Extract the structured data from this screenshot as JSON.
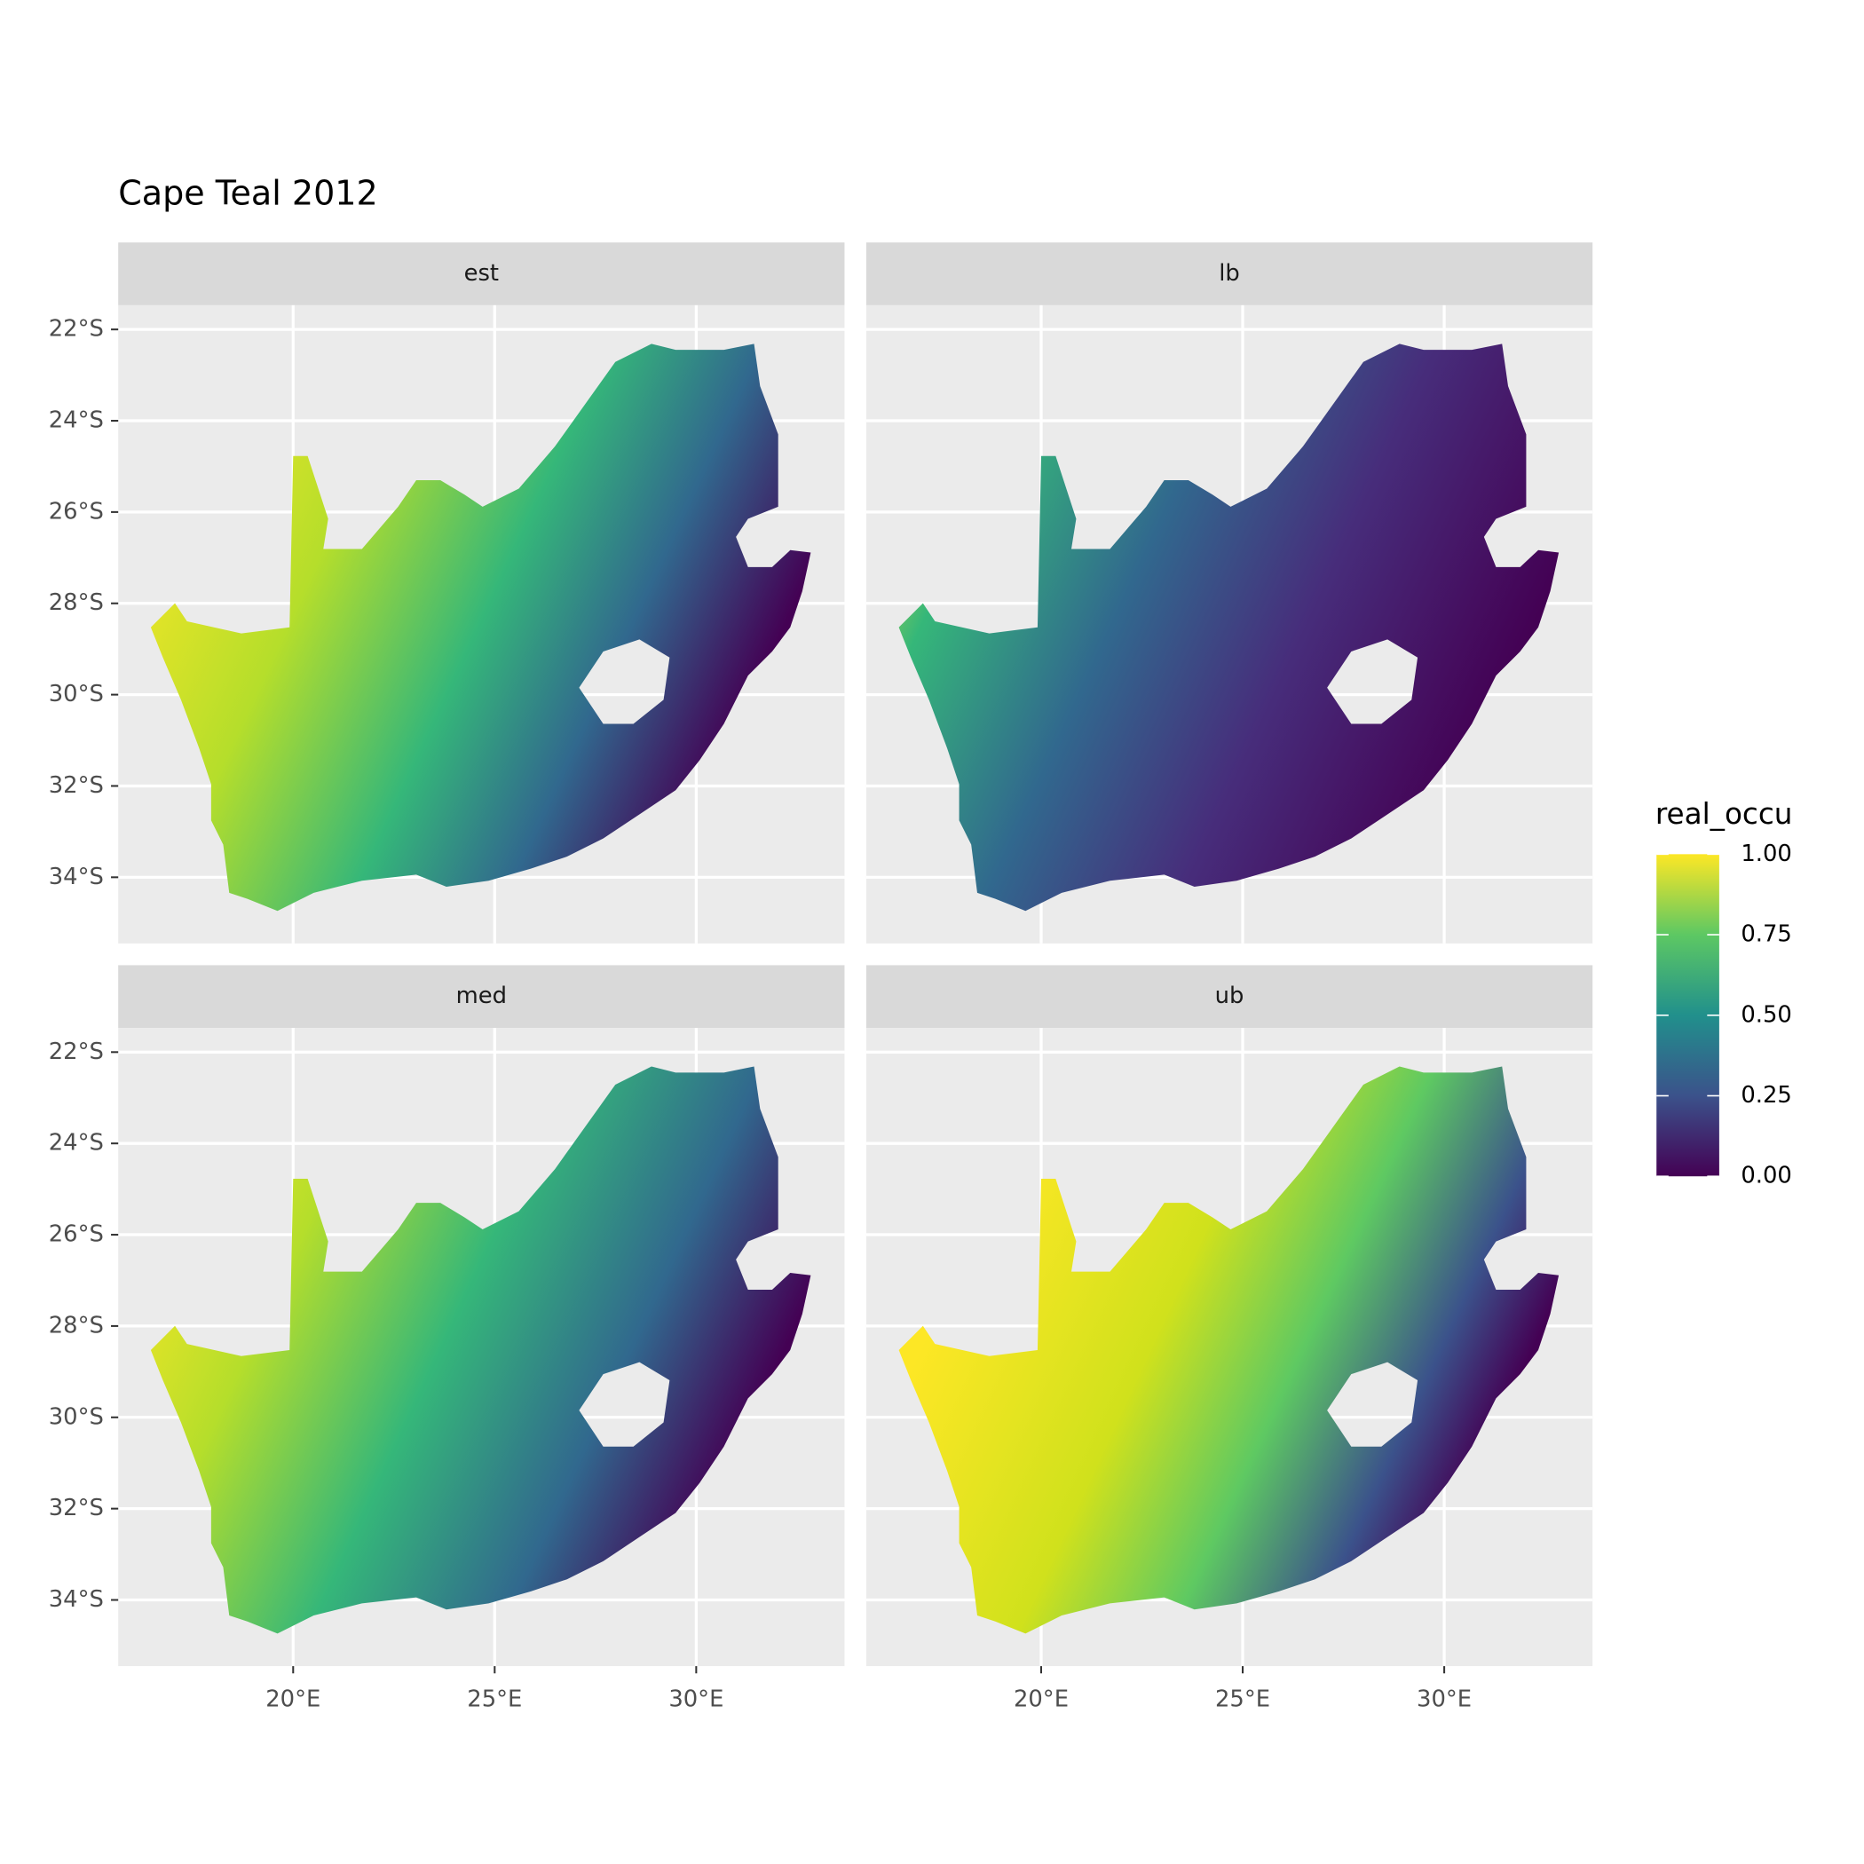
{
  "chart_data": {
    "type": "raster-map",
    "title": "Cape Teal 2012",
    "facets": [
      "est",
      "lb",
      "med",
      "ub"
    ],
    "xlim": [
      15.66,
      33.68
    ],
    "xticks": [
      {
        "value": 20,
        "label": "20°E"
      },
      {
        "value": 25,
        "label": "25°E"
      },
      {
        "value": 30,
        "label": "30°E"
      }
    ],
    "ylim": [
      -35.45,
      -21.47
    ],
    "yticks": [
      {
        "value": -22,
        "label": "22°S"
      },
      {
        "value": -24,
        "label": "24°S"
      },
      {
        "value": -26,
        "label": "26°S"
      },
      {
        "value": -28,
        "label": "28°S"
      },
      {
        "value": -30,
        "label": "30°S"
      },
      {
        "value": -32,
        "label": "32°S"
      },
      {
        "value": -34,
        "label": "34°S"
      }
    ],
    "grid": true,
    "legend": {
      "title": "real_occu",
      "lim": [
        0,
        1
      ],
      "ticks": [
        {
          "value": 0,
          "label": "0.00"
        },
        {
          "value": 0.25,
          "label": "0.25"
        },
        {
          "value": 0.5,
          "label": "0.50"
        },
        {
          "value": 0.75,
          "label": "0.75"
        },
        {
          "value": 1,
          "label": "1.00"
        }
      ],
      "colors": [
        "#440154",
        "#3b528b",
        "#21908c",
        "#5dc863",
        "#fde725"
      ]
    }
  }
}
